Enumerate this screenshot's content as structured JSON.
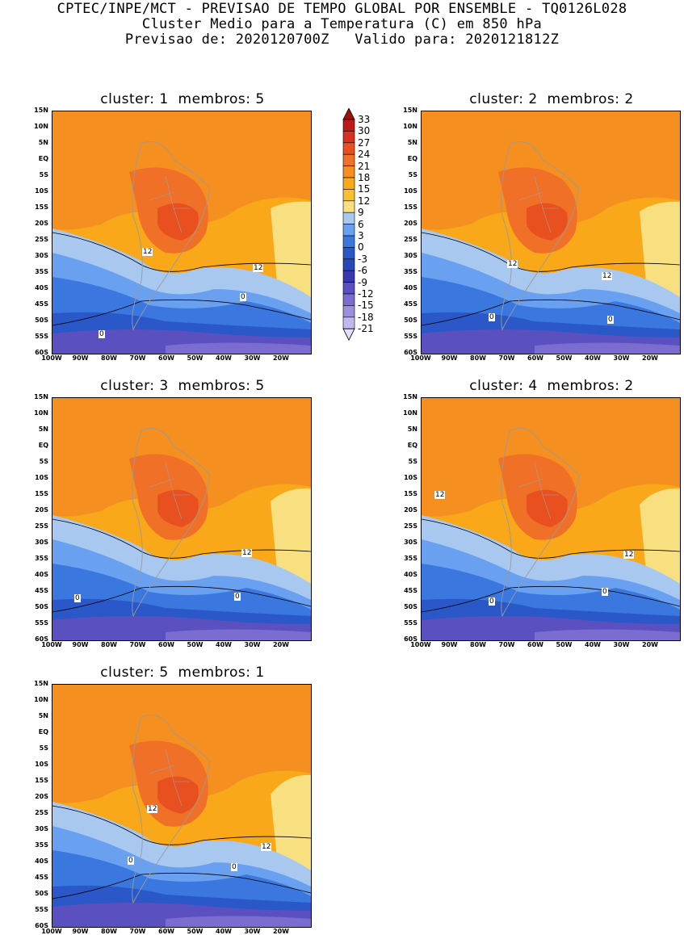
{
  "header": {
    "line1": "CPTEC/INPE/MCT - PREVISAO DE TEMPO GLOBAL POR ENSEMBLE - TQ0126L028",
    "line2": "Cluster Medio para a Temperatura (C) em 850 hPa",
    "line3": "Previsao de: 2020120700Z   Valido para: 2020121812Z"
  },
  "lat_labels": [
    "15N",
    "10N",
    "5N",
    "EQ",
    "5S",
    "10S",
    "15S",
    "20S",
    "25S",
    "30S",
    "35S",
    "40S",
    "45S",
    "50S",
    "55S",
    "60S"
  ],
  "lon_labels": [
    "100W",
    "90W",
    "80W",
    "70W",
    "60W",
    "50W",
    "40W",
    "30W",
    "20W"
  ],
  "panels": [
    {
      "title": "cluster: 1  membros: 5",
      "labels": [
        "12",
        "12",
        "0",
        "0"
      ]
    },
    {
      "title": "cluster: 2  membros: 2",
      "labels": [
        "12",
        "12",
        "0",
        "0"
      ]
    },
    {
      "title": "cluster: 3  membros: 5",
      "labels": [
        "12",
        "0",
        "0"
      ]
    },
    {
      "title": "cluster: 4  membros: 2",
      "labels": [
        "12",
        "12",
        "0",
        "0"
      ]
    },
    {
      "title": "cluster: 5  membros: 1",
      "labels": [
        "12",
        "12",
        "0",
        "0"
      ]
    }
  ],
  "colorbar": {
    "labels": [
      "33",
      "30",
      "27",
      "24",
      "21",
      "18",
      "15",
      "12",
      "9",
      "6",
      "3",
      "0",
      "-3",
      "-6",
      "-9",
      "-12",
      "-15",
      "-18",
      "-21"
    ],
    "colors": [
      "#a01010",
      "#c01818",
      "#d83020",
      "#e85020",
      "#f07028",
      "#f59020",
      "#f8a818",
      "#f8c030",
      "#f8e080",
      "#a8c8f0",
      "#6aa0f0",
      "#3a78e0",
      "#2a58c8",
      "#2848b8",
      "#3838b0",
      "#5a50c0",
      "#7a6cd0",
      "#9c8ee0",
      "#c0b8f0",
      "#e4deff"
    ]
  }
}
